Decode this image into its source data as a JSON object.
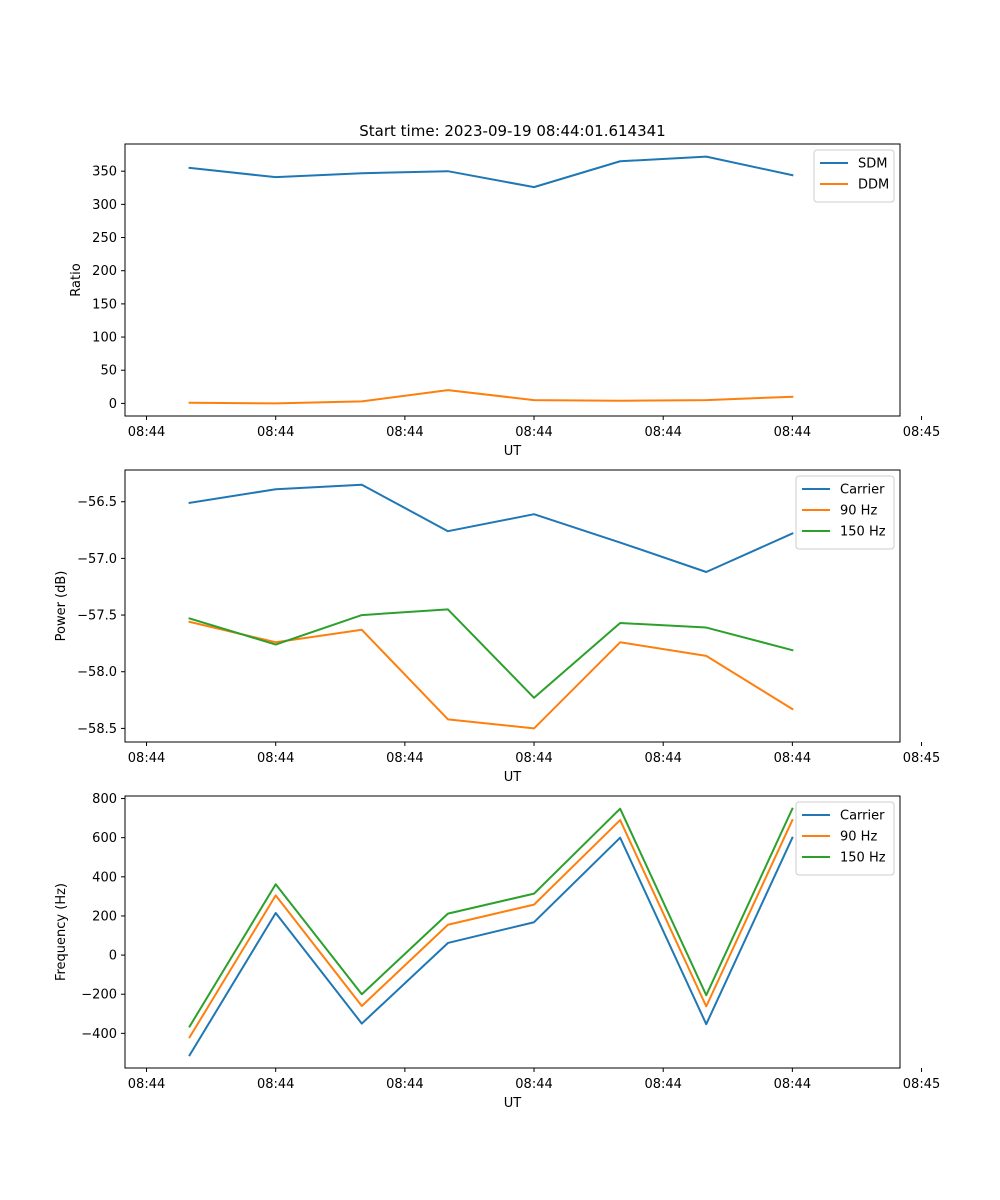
{
  "chart_data": [
    {
      "type": "line",
      "title": "Start time: 2023-09-19 08:44:01.614341",
      "xlabel": "UT",
      "ylabel": "Ratio",
      "xlim": [
        -0.25,
        8.75
      ],
      "ylim": [
        -19,
        391
      ],
      "x": [
        0.5,
        1.5,
        2.5,
        3.5,
        4.5,
        5.5,
        6.5,
        7.5
      ],
      "xticks": [
        0,
        1.5,
        3,
        4.5,
        6,
        7.5,
        9
      ],
      "xtick_labels": [
        "08:44",
        "08:44",
        "08:44",
        "08:44",
        "08:44",
        "08:44",
        "08:45"
      ],
      "yticks": [
        0,
        50,
        100,
        150,
        200,
        250,
        300,
        350
      ],
      "ytick_labels": [
        "0",
        "50",
        "100",
        "150",
        "200",
        "250",
        "300",
        "350"
      ],
      "legend_position": "top-right",
      "series": [
        {
          "name": "SDM",
          "color": "#1f77b4",
          "values": [
            355,
            341,
            347,
            350,
            326,
            365,
            372,
            344
          ]
        },
        {
          "name": "DDM",
          "color": "#ff7f0e",
          "values": [
            1,
            0,
            3,
            20,
            5,
            4,
            5,
            10
          ]
        }
      ]
    },
    {
      "type": "line",
      "title": "",
      "xlabel": "UT",
      "ylabel": "Power (dB)",
      "xlim": [
        -0.25,
        8.75
      ],
      "ylim": [
        -58.62,
        -56.22
      ],
      "x": [
        0.5,
        1.5,
        2.5,
        3.5,
        4.5,
        5.5,
        6.5,
        7.5
      ],
      "xticks": [
        0,
        1.5,
        3,
        4.5,
        6,
        7.5,
        9
      ],
      "xtick_labels": [
        "08:44",
        "08:44",
        "08:44",
        "08:44",
        "08:44",
        "08:44",
        "08:45"
      ],
      "yticks": [
        -58.5,
        -58.0,
        -57.5,
        -57.0,
        -56.5
      ],
      "ytick_labels": [
        "−58.5",
        "−58.0",
        "−57.5",
        "−57.0",
        "−56.5"
      ],
      "legend_position": "top-right",
      "series": [
        {
          "name": "Carrier",
          "color": "#1f77b4",
          "values": [
            -56.51,
            -56.39,
            -56.35,
            -56.76,
            -56.61,
            -56.86,
            -57.12,
            -56.78
          ]
        },
        {
          "name": "90 Hz",
          "color": "#ff7f0e",
          "values": [
            -57.56,
            -57.74,
            -57.63,
            -58.42,
            -58.5,
            -57.74,
            -57.86,
            -58.33
          ]
        },
        {
          "name": "150 Hz",
          "color": "#2ca02c",
          "values": [
            -57.53,
            -57.76,
            -57.5,
            -57.45,
            -58.23,
            -57.57,
            -57.61,
            -57.81
          ]
        }
      ]
    },
    {
      "type": "line",
      "title": "",
      "xlabel": "UT",
      "ylabel": "Frequency (Hz)",
      "xlim": [
        -0.25,
        8.75
      ],
      "ylim": [
        -577,
        813
      ],
      "x": [
        0.5,
        1.5,
        2.5,
        3.5,
        4.5,
        5.5,
        6.5,
        7.5
      ],
      "xticks": [
        0,
        1.5,
        3,
        4.5,
        6,
        7.5,
        9
      ],
      "xtick_labels": [
        "08:44",
        "08:44",
        "08:44",
        "08:44",
        "08:44",
        "08:44",
        "08:45"
      ],
      "yticks": [
        -400,
        -200,
        0,
        200,
        400,
        600,
        800
      ],
      "ytick_labels": [
        "−400",
        "−200",
        "0",
        "200",
        "400",
        "600",
        "800"
      ],
      "legend_position": "top-right",
      "series": [
        {
          "name": "Carrier",
          "color": "#1f77b4",
          "values": [
            -512,
            215,
            -350,
            62,
            168,
            600,
            -353,
            600
          ]
        },
        {
          "name": "90 Hz",
          "color": "#ff7f0e",
          "values": [
            -420,
            305,
            -260,
            155,
            258,
            690,
            -262,
            690
          ]
        },
        {
          "name": "150 Hz",
          "color": "#2ca02c",
          "values": [
            -365,
            362,
            -200,
            212,
            314,
            748,
            -205,
            748
          ]
        }
      ]
    }
  ]
}
